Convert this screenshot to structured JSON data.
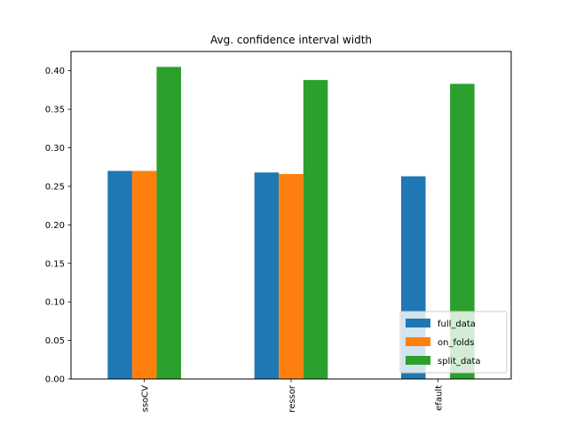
{
  "chart_data": {
    "type": "bar",
    "title": "Avg. confidence interval width",
    "xlabel": "",
    "ylabel": "",
    "categories": [
      "ssoCV",
      "ressor",
      "efault"
    ],
    "series": [
      {
        "name": "full_data",
        "color": "#1f77b4",
        "values": [
          0.27,
          0.268,
          0.263
        ]
      },
      {
        "name": "on_folds",
        "color": "#ff7f0e",
        "values": [
          0.27,
          0.266,
          null
        ]
      },
      {
        "name": "split_data",
        "color": "#2ca02c",
        "values": [
          0.405,
          0.388,
          0.383
        ]
      }
    ],
    "ylim": [
      0,
      0.425
    ],
    "yticks": [
      0.0,
      0.05,
      0.1,
      0.15,
      0.2,
      0.25,
      0.3,
      0.35,
      0.4
    ],
    "ytick_labels": [
      "0.00",
      "0.05",
      "0.10",
      "0.15",
      "0.20",
      "0.25",
      "0.30",
      "0.35",
      "0.40"
    ],
    "grid": false,
    "legend": {
      "placement": "lower-right",
      "entries": [
        "full_data",
        "on_folds",
        "split_data"
      ]
    },
    "xtick_rotation": "vertical"
  }
}
